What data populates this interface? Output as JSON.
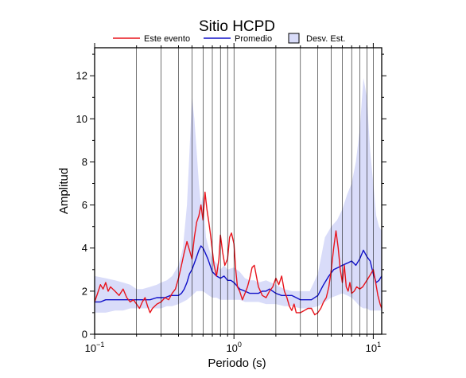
{
  "chart_data": {
    "type": "line",
    "title": "Sitio HCPD",
    "xlabel": "Periodo (s)",
    "ylabel": "Amplitud",
    "xscale": "log",
    "xlim": [
      0.1,
      11.5
    ],
    "ylim": [
      0,
      13.3
    ],
    "x_ticks": [
      {
        "value": 0.1,
        "base": "10",
        "exp": "−1"
      },
      {
        "value": 1,
        "base": "10",
        "exp": "0"
      },
      {
        "value": 10,
        "base": "10",
        "exp": "1"
      }
    ],
    "y_ticks": [
      0,
      2,
      4,
      6,
      8,
      10,
      12
    ],
    "grid": "vertical",
    "legend_position": "top",
    "legend": {
      "este": "Este evento",
      "promedio": "Promedio",
      "desv": "Desv. Est."
    },
    "colors": {
      "este": "#e8141c",
      "promedio": "#1010c8",
      "band": "#d9dcf9"
    },
    "series": [
      {
        "name": "Este evento",
        "x": [
          0.1,
          0.105,
          0.11,
          0.115,
          0.12,
          0.125,
          0.13,
          0.14,
          0.15,
          0.16,
          0.17,
          0.18,
          0.19,
          0.2,
          0.21,
          0.22,
          0.23,
          0.24,
          0.25,
          0.26,
          0.28,
          0.3,
          0.32,
          0.34,
          0.36,
          0.38,
          0.4,
          0.42,
          0.44,
          0.46,
          0.48,
          0.5,
          0.52,
          0.54,
          0.56,
          0.58,
          0.6,
          0.62,
          0.64,
          0.66,
          0.68,
          0.7,
          0.72,
          0.75,
          0.78,
          0.8,
          0.83,
          0.86,
          0.9,
          0.93,
          0.96,
          1.0,
          1.03,
          1.06,
          1.1,
          1.15,
          1.2,
          1.25,
          1.3,
          1.35,
          1.4,
          1.5,
          1.6,
          1.7,
          1.8,
          1.9,
          2.0,
          2.1,
          2.2,
          2.3,
          2.4,
          2.5,
          2.6,
          2.7,
          2.8,
          3.0,
          3.2,
          3.4,
          3.6,
          3.8,
          4.0,
          4.2,
          4.4,
          4.6,
          4.8,
          5.0,
          5.2,
          5.4,
          5.6,
          5.8,
          6.0,
          6.2,
          6.4,
          6.6,
          6.8,
          7.0,
          7.3,
          7.6,
          8.0,
          8.4,
          8.8,
          9.2,
          9.6,
          10.0,
          10.4,
          10.8,
          11.2,
          11.5
        ],
        "values": [
          1.5,
          1.9,
          2.3,
          2.1,
          2.4,
          2.0,
          2.2,
          2.0,
          1.8,
          2.1,
          1.7,
          1.5,
          1.6,
          1.4,
          1.2,
          1.5,
          1.7,
          1.3,
          1.0,
          1.2,
          1.4,
          1.5,
          1.7,
          1.6,
          1.9,
          2.1,
          2.6,
          3.2,
          3.8,
          4.3,
          3.9,
          3.5,
          4.5,
          5.2,
          5.5,
          6.0,
          5.3,
          6.6,
          5.8,
          5.2,
          4.6,
          3.9,
          3.2,
          2.7,
          3.5,
          4.6,
          3.8,
          3.2,
          3.5,
          4.5,
          4.7,
          4.2,
          3.0,
          2.2,
          2.0,
          1.6,
          1.9,
          2.2,
          2.6,
          3.1,
          3.2,
          2.2,
          1.8,
          1.7,
          2.0,
          2.2,
          2.6,
          2.3,
          2.7,
          2.0,
          1.7,
          1.3,
          1.1,
          1.4,
          1.0,
          1.0,
          1.1,
          1.2,
          1.2,
          0.9,
          1.0,
          1.2,
          1.5,
          1.7,
          2.2,
          3.0,
          4.0,
          4.8,
          4.0,
          3.0,
          2.4,
          3.2,
          2.2,
          2.0,
          2.4,
          1.9,
          2.0,
          2.2,
          2.1,
          2.2,
          2.4,
          2.6,
          2.8,
          3.0,
          2.4,
          1.8,
          1.4,
          1.2
        ]
      },
      {
        "name": "Promedio",
        "x": [
          0.1,
          0.11,
          0.12,
          0.13,
          0.15,
          0.17,
          0.19,
          0.21,
          0.23,
          0.25,
          0.28,
          0.3,
          0.32,
          0.35,
          0.38,
          0.4,
          0.42,
          0.44,
          0.46,
          0.48,
          0.5,
          0.52,
          0.54,
          0.56,
          0.58,
          0.6,
          0.62,
          0.65,
          0.7,
          0.75,
          0.8,
          0.85,
          0.9,
          0.95,
          1.0,
          1.1,
          1.2,
          1.3,
          1.4,
          1.5,
          1.6,
          1.7,
          1.8,
          1.9,
          2.0,
          2.2,
          2.4,
          2.6,
          2.8,
          3.0,
          3.3,
          3.6,
          4.0,
          4.4,
          4.8,
          5.2,
          5.6,
          6.0,
          6.5,
          7.0,
          7.5,
          8.0,
          8.5,
          9.0,
          9.5,
          10.0,
          10.5,
          11.0,
          11.5
        ],
        "values": [
          1.5,
          1.5,
          1.6,
          1.6,
          1.6,
          1.6,
          1.6,
          1.6,
          1.6,
          1.6,
          1.7,
          1.7,
          1.7,
          1.8,
          1.8,
          1.8,
          1.9,
          2.1,
          2.4,
          2.8,
          3.0,
          3.3,
          3.6,
          3.9,
          4.1,
          4.0,
          3.8,
          3.5,
          2.9,
          2.7,
          2.6,
          2.7,
          2.5,
          2.5,
          2.4,
          2.1,
          2.0,
          1.9,
          1.9,
          1.9,
          2.0,
          2.0,
          2.1,
          2.0,
          1.9,
          1.8,
          1.8,
          1.8,
          1.7,
          1.6,
          1.6,
          1.6,
          1.8,
          2.3,
          2.7,
          3.0,
          3.1,
          3.2,
          3.3,
          3.4,
          3.2,
          3.5,
          3.9,
          3.6,
          3.4,
          2.8,
          2.4,
          2.5,
          2.7
        ]
      },
      {
        "name": "Desv. Est.",
        "x": [
          0.1,
          0.12,
          0.14,
          0.16,
          0.18,
          0.2,
          0.22,
          0.25,
          0.28,
          0.3,
          0.33,
          0.36,
          0.4,
          0.43,
          0.46,
          0.48,
          0.5,
          0.52,
          0.54,
          0.56,
          0.58,
          0.6,
          0.63,
          0.66,
          0.7,
          0.75,
          0.8,
          0.85,
          0.9,
          1.0,
          1.1,
          1.2,
          1.3,
          1.4,
          1.5,
          1.7,
          2.0,
          2.3,
          2.6,
          3.0,
          3.5,
          4.0,
          4.5,
          5.0,
          5.5,
          6.0,
          6.5,
          7.0,
          7.5,
          8.0,
          8.5,
          9.0,
          9.5,
          10.0,
          10.5,
          11.0,
          11.5
        ],
        "upper": [
          2.7,
          2.6,
          2.5,
          2.4,
          2.3,
          2.1,
          2.1,
          2.2,
          2.3,
          2.4,
          2.5,
          2.7,
          3.2,
          4.0,
          6.0,
          8.5,
          11.0,
          10.0,
          8.5,
          7.0,
          6.0,
          6.5,
          4.5,
          4.0,
          3.5,
          3.3,
          3.0,
          3.2,
          3.0,
          3.1,
          2.9,
          2.6,
          2.5,
          2.5,
          2.4,
          2.5,
          2.3,
          2.1,
          2.0,
          2.0,
          2.0,
          2.8,
          4.5,
          5.0,
          5.3,
          5.8,
          6.5,
          7.0,
          8.0,
          9.5,
          11.9,
          11.0,
          8.5,
          7.0,
          5.5,
          5.0,
          4.8
        ],
        "lower": [
          1.0,
          1.0,
          1.1,
          1.1,
          1.2,
          1.2,
          1.2,
          1.2,
          1.2,
          1.2,
          1.3,
          1.3,
          1.4,
          1.5,
          1.6,
          1.7,
          1.8,
          1.9,
          2.0,
          2.0,
          2.0,
          2.0,
          1.9,
          1.8,
          1.7,
          1.7,
          1.6,
          1.6,
          1.6,
          1.6,
          1.6,
          1.5,
          1.5,
          1.5,
          1.5,
          1.4,
          1.4,
          1.3,
          1.3,
          1.2,
          1.2,
          1.3,
          1.5,
          1.7,
          1.8,
          1.9,
          1.8,
          1.7,
          1.5,
          1.3,
          1.2,
          1.2,
          1.1,
          1.1,
          1.1,
          1.1,
          1.1
        ]
      }
    ]
  }
}
